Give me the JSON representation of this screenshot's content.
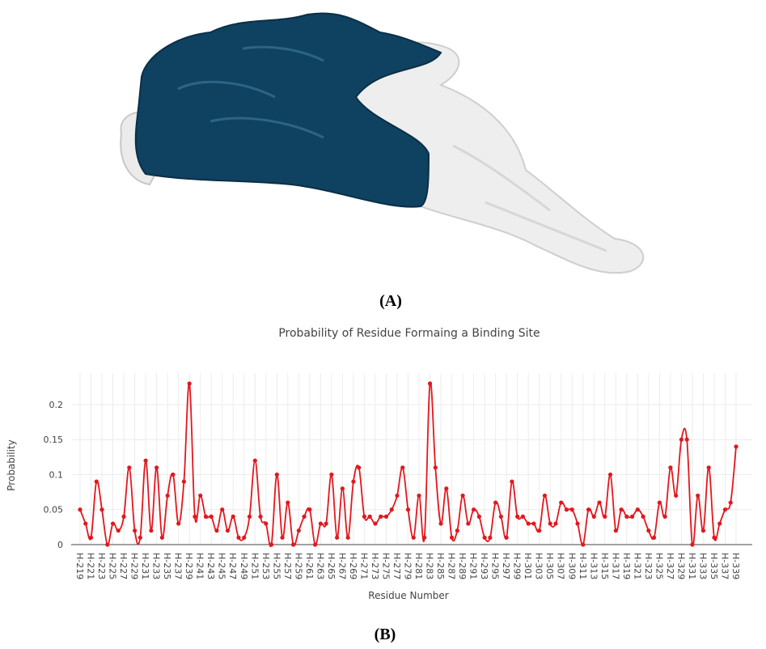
{
  "panel_labels": [
    "(A)",
    "(B)"
  ],
  "chart_data": {
    "type": "line",
    "title": "Probability of Residue Formaing a Binding Site",
    "x_label": "Residue Number",
    "y_label": "Probability",
    "categories": [
      "H-219",
      null,
      "H-221",
      null,
      "H-223",
      null,
      "H-225",
      null,
      "H-227",
      null,
      "H-229",
      null,
      "H-231",
      null,
      "H-233",
      null,
      "H-235",
      null,
      "H-237",
      null,
      "H-239",
      null,
      "H-241",
      null,
      "H-243",
      null,
      "H-245",
      null,
      "H-247",
      null,
      "H-249",
      null,
      "H-251",
      null,
      "H-253",
      null,
      "H-255",
      null,
      "H-257",
      null,
      "H-259",
      null,
      "H-261",
      null,
      "H-263",
      null,
      "H-265",
      null,
      "H-267",
      null,
      "H-269",
      null,
      "H-271",
      null,
      "H-273",
      null,
      "H-275",
      null,
      "H-277",
      null,
      "H-279",
      null,
      "H-281",
      null,
      "H-283",
      null,
      "H-285",
      null,
      "H-287",
      null,
      "H-289",
      null,
      "H-291",
      null,
      "H-293",
      null,
      "H-295",
      null,
      "H-297",
      null,
      "H-299",
      null,
      "H-301",
      null,
      "H-303",
      null,
      "H-305",
      null,
      "H-307",
      null,
      "H-309",
      null,
      "H-311",
      null,
      "H-313",
      null,
      "H-315",
      null,
      "H-317",
      null,
      "H-319",
      null,
      "H-321",
      null,
      "H-323",
      null,
      "H-325",
      null,
      "H-327",
      null,
      "H-329",
      null,
      "H-331",
      null,
      "H-333",
      null,
      "H-335",
      null,
      "H-337",
      null,
      "H-339"
    ],
    "values": [
      0.05,
      0.03,
      0.01,
      0.09,
      0.05,
      0,
      0.03,
      0.02,
      0.04,
      0.11,
      0.02,
      0.01,
      0.12,
      0.02,
      0.11,
      0.01,
      0.07,
      0.1,
      0.03,
      0.09,
      0.23,
      0.04,
      0.07,
      0.04,
      0.04,
      0.02,
      0.05,
      0.02,
      0.04,
      0.01,
      0.01,
      0.04,
      0.12,
      0.04,
      0.03,
      0,
      0.1,
      0.01,
      0.06,
      0,
      0.02,
      0.04,
      0.05,
      0,
      0.03,
      0.03,
      0.1,
      0.01,
      0.08,
      0.01,
      0.09,
      0.11,
      0.04,
      0.04,
      0.03,
      0.04,
      0.04,
      0.05,
      0.07,
      0.11,
      0.05,
      0.01,
      0.07,
      0.01,
      0.23,
      0.11,
      0.03,
      0.08,
      0.01,
      0.02,
      0.07,
      0.03,
      0.05,
      0.04,
      0.01,
      0.01,
      0.06,
      0.04,
      0.01,
      0.09,
      0.04,
      0.04,
      0.03,
      0.03,
      0.02,
      0.07,
      0.03,
      0.03,
      0.06,
      0.05,
      0.05,
      0.03,
      0,
      0.05,
      0.04,
      0.06,
      0.04,
      0.1,
      0.02,
      0.05,
      0.04,
      0.04,
      0.05,
      0.04,
      0.02,
      0.01,
      0.06,
      0.04,
      0.11,
      0.07,
      0.15,
      0.15,
      0,
      0.07,
      0.02,
      0.11,
      0.01,
      0.03,
      0.05,
      0.06,
      0.14
    ],
    "color": "#e3171d",
    "ylim": [
      0,
      0.245
    ],
    "yticks": [
      0,
      0.05,
      0.1,
      0.15,
      0.2
    ],
    "grid": true
  }
}
